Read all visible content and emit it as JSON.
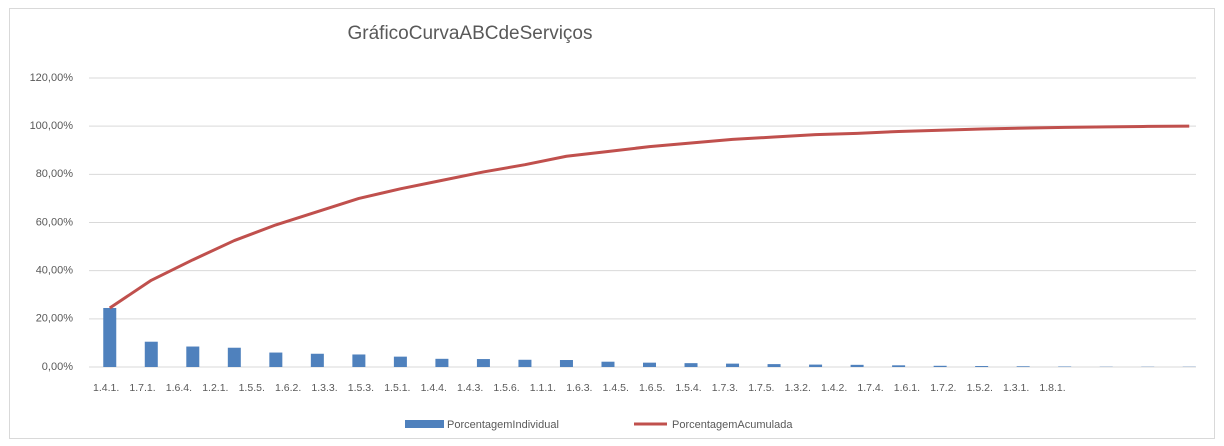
{
  "chart_data": {
    "type": "bar_line",
    "title": "GráficoCurvaABCdeServiços",
    "categories": [
      "1.4.1.",
      "1.7.1.",
      "1.6.4.",
      "1.2.1.",
      "1.5.5.",
      "1.6.2.",
      "1.3.3.",
      "1.5.3.",
      "1.5.1.",
      "1.4.4.",
      "1.4.3.",
      "1.5.6.",
      "1.1.1.",
      "1.6.3.",
      "1.4.5.",
      "1.6.5.",
      "1.5.4.",
      "1.7.3.",
      "1.7.5.",
      "1.3.2.",
      "1.4.2.",
      "1.7.4.",
      "1.6.1.",
      "1.7.2.",
      "1.5.2.",
      "1.3.1.",
      "1.8.1."
    ],
    "series": [
      {
        "name": "PorcentagemIndividual",
        "color": "#4f81bd",
        "type": "bar",
        "values": [
          24.5,
          10.5,
          8.5,
          8.0,
          6.0,
          5.5,
          5.2,
          4.3,
          3.4,
          3.3,
          3.0,
          2.9,
          2.2,
          1.8,
          1.6,
          1.4,
          1.2,
          1.0,
          0.9,
          0.7,
          0.5,
          0.4,
          0.3,
          0.2,
          0.1,
          0.1,
          0.1
        ]
      },
      {
        "name": "PorcentagemAcumulada",
        "color": "#c0504d",
        "type": "line",
        "values": [
          24.5,
          36,
          44.5,
          52.5,
          59,
          64.5,
          70,
          74,
          77.5,
          81,
          84,
          87.5,
          89.5,
          91.5,
          93,
          94.5,
          95.5,
          96.5,
          97,
          97.8,
          98.3,
          98.8,
          99.2,
          99.5,
          99.7,
          99.9,
          100
        ]
      }
    ],
    "ylim": [
      0,
      120
    ],
    "yticks": [
      {
        "value": 0,
        "label": "0,00%"
      },
      {
        "value": 20,
        "label": "20,00%"
      },
      {
        "value": 40,
        "label": "40,00%"
      },
      {
        "value": 60,
        "label": "60,00%"
      },
      {
        "value": 80,
        "label": "80,00%"
      },
      {
        "value": 100,
        "label": "100,00%"
      },
      {
        "value": 120,
        "label": "120,00%"
      }
    ],
    "grid": true,
    "legend": "bottom"
  }
}
